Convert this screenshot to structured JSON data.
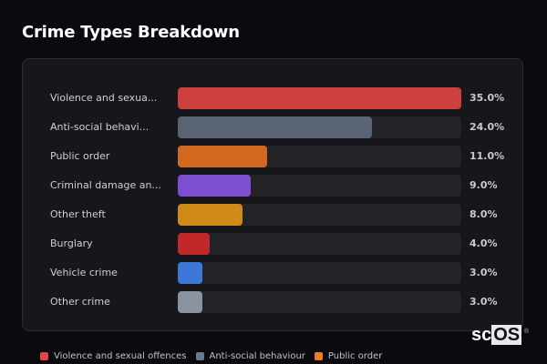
{
  "title": "Crime Types Breakdown",
  "chart_data": {
    "type": "bar",
    "orientation": "horizontal",
    "title": "Crime Types Breakdown",
    "xlabel": "",
    "ylabel": "",
    "xlim": [
      0,
      35
    ],
    "categories": [
      "Violence and sexual offences",
      "Anti-social behaviour",
      "Public order",
      "Criminal damage and arson",
      "Other theft",
      "Burglary",
      "Vehicle crime",
      "Other crime"
    ],
    "display_labels": [
      "Violence and sexua...",
      "Anti-social behavi...",
      "Public order",
      "Criminal damage an...",
      "Other theft",
      "Burglary",
      "Vehicle crime",
      "Other crime"
    ],
    "values": [
      35.0,
      24.0,
      11.0,
      9.0,
      8.0,
      4.0,
      3.0,
      3.0
    ],
    "value_labels": [
      "35.0%",
      "24.0%",
      "11.0%",
      "9.0%",
      "8.0%",
      "4.0%",
      "3.0%",
      "3.0%"
    ],
    "colors": [
      "#cc4040",
      "#5a6475",
      "#d2691e",
      "#7b4fcf",
      "#d08a18",
      "#c0282a",
      "#3b78d8",
      "#8a92a0"
    ],
    "grid": false,
    "legend_position": "bottom"
  },
  "rows": [
    {
      "label": "Violence and sexua...",
      "value": "35.0%",
      "pct": 100,
      "color": "#cc4040"
    },
    {
      "label": "Anti-social behavi...",
      "value": "24.0%",
      "pct": 68.6,
      "color": "#5a6475"
    },
    {
      "label": "Public order",
      "value": "11.0%",
      "pct": 31.4,
      "color": "#d2691e"
    },
    {
      "label": "Criminal damage an...",
      "value": "9.0%",
      "pct": 25.7,
      "color": "#7b4fcf"
    },
    {
      "label": "Other theft",
      "value": "8.0%",
      "pct": 22.9,
      "color": "#d08a18"
    },
    {
      "label": "Burglary",
      "value": "4.0%",
      "pct": 11.4,
      "color": "#c0282a"
    },
    {
      "label": "Vehicle crime",
      "value": "3.0%",
      "pct": 8.6,
      "color": "#3b78d8"
    },
    {
      "label": "Other crime",
      "value": "3.0%",
      "pct": 8.6,
      "color": "#8a92a0"
    }
  ],
  "legend": [
    {
      "label": "Violence and sexual offences",
      "color": "#e04848"
    },
    {
      "label": "Anti-social behaviour",
      "color": "#6b7891"
    },
    {
      "label": "Public order",
      "color": "#f07c24"
    }
  ],
  "logo": {
    "part1": "sc",
    "part2": "OS",
    "mark": "®"
  }
}
